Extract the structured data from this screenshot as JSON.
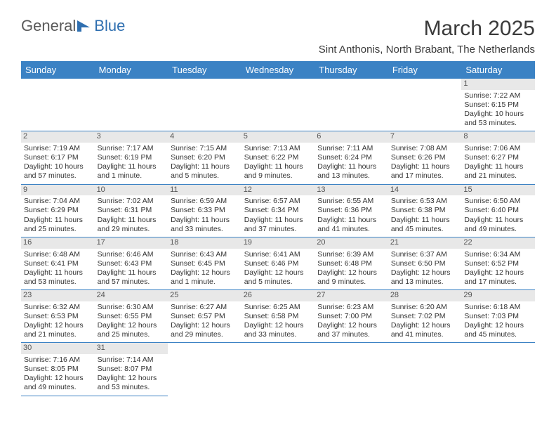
{
  "logo": {
    "text1": "General",
    "text2": "Blue",
    "color1": "#6a6a6a",
    "color2": "#2f6fb0"
  },
  "header": {
    "title": "March 2025",
    "subtitle": "Sint Anthonis, North Brabant, The Netherlands"
  },
  "colors": {
    "header_bg": "#3b82c4",
    "header_text": "#ffffff",
    "daynum_bg": "#e8e8e8",
    "border": "#3b82c4"
  },
  "weekdays": [
    "Sunday",
    "Monday",
    "Tuesday",
    "Wednesday",
    "Thursday",
    "Friday",
    "Saturday"
  ],
  "weeks": [
    [
      {
        "empty": true
      },
      {
        "empty": true
      },
      {
        "empty": true
      },
      {
        "empty": true
      },
      {
        "empty": true
      },
      {
        "empty": true
      },
      {
        "n": "1",
        "sunrise": "Sunrise: 7:22 AM",
        "sunset": "Sunset: 6:15 PM",
        "daylight": "Daylight: 10 hours and 53 minutes."
      }
    ],
    [
      {
        "n": "2",
        "sunrise": "Sunrise: 7:19 AM",
        "sunset": "Sunset: 6:17 PM",
        "daylight": "Daylight: 10 hours and 57 minutes."
      },
      {
        "n": "3",
        "sunrise": "Sunrise: 7:17 AM",
        "sunset": "Sunset: 6:19 PM",
        "daylight": "Daylight: 11 hours and 1 minute."
      },
      {
        "n": "4",
        "sunrise": "Sunrise: 7:15 AM",
        "sunset": "Sunset: 6:20 PM",
        "daylight": "Daylight: 11 hours and 5 minutes."
      },
      {
        "n": "5",
        "sunrise": "Sunrise: 7:13 AM",
        "sunset": "Sunset: 6:22 PM",
        "daylight": "Daylight: 11 hours and 9 minutes."
      },
      {
        "n": "6",
        "sunrise": "Sunrise: 7:11 AM",
        "sunset": "Sunset: 6:24 PM",
        "daylight": "Daylight: 11 hours and 13 minutes."
      },
      {
        "n": "7",
        "sunrise": "Sunrise: 7:08 AM",
        "sunset": "Sunset: 6:26 PM",
        "daylight": "Daylight: 11 hours and 17 minutes."
      },
      {
        "n": "8",
        "sunrise": "Sunrise: 7:06 AM",
        "sunset": "Sunset: 6:27 PM",
        "daylight": "Daylight: 11 hours and 21 minutes."
      }
    ],
    [
      {
        "n": "9",
        "sunrise": "Sunrise: 7:04 AM",
        "sunset": "Sunset: 6:29 PM",
        "daylight": "Daylight: 11 hours and 25 minutes."
      },
      {
        "n": "10",
        "sunrise": "Sunrise: 7:02 AM",
        "sunset": "Sunset: 6:31 PM",
        "daylight": "Daylight: 11 hours and 29 minutes."
      },
      {
        "n": "11",
        "sunrise": "Sunrise: 6:59 AM",
        "sunset": "Sunset: 6:33 PM",
        "daylight": "Daylight: 11 hours and 33 minutes."
      },
      {
        "n": "12",
        "sunrise": "Sunrise: 6:57 AM",
        "sunset": "Sunset: 6:34 PM",
        "daylight": "Daylight: 11 hours and 37 minutes."
      },
      {
        "n": "13",
        "sunrise": "Sunrise: 6:55 AM",
        "sunset": "Sunset: 6:36 PM",
        "daylight": "Daylight: 11 hours and 41 minutes."
      },
      {
        "n": "14",
        "sunrise": "Sunrise: 6:53 AM",
        "sunset": "Sunset: 6:38 PM",
        "daylight": "Daylight: 11 hours and 45 minutes."
      },
      {
        "n": "15",
        "sunrise": "Sunrise: 6:50 AM",
        "sunset": "Sunset: 6:40 PM",
        "daylight": "Daylight: 11 hours and 49 minutes."
      }
    ],
    [
      {
        "n": "16",
        "sunrise": "Sunrise: 6:48 AM",
        "sunset": "Sunset: 6:41 PM",
        "daylight": "Daylight: 11 hours and 53 minutes."
      },
      {
        "n": "17",
        "sunrise": "Sunrise: 6:46 AM",
        "sunset": "Sunset: 6:43 PM",
        "daylight": "Daylight: 11 hours and 57 minutes."
      },
      {
        "n": "18",
        "sunrise": "Sunrise: 6:43 AM",
        "sunset": "Sunset: 6:45 PM",
        "daylight": "Daylight: 12 hours and 1 minute."
      },
      {
        "n": "19",
        "sunrise": "Sunrise: 6:41 AM",
        "sunset": "Sunset: 6:46 PM",
        "daylight": "Daylight: 12 hours and 5 minutes."
      },
      {
        "n": "20",
        "sunrise": "Sunrise: 6:39 AM",
        "sunset": "Sunset: 6:48 PM",
        "daylight": "Daylight: 12 hours and 9 minutes."
      },
      {
        "n": "21",
        "sunrise": "Sunrise: 6:37 AM",
        "sunset": "Sunset: 6:50 PM",
        "daylight": "Daylight: 12 hours and 13 minutes."
      },
      {
        "n": "22",
        "sunrise": "Sunrise: 6:34 AM",
        "sunset": "Sunset: 6:52 PM",
        "daylight": "Daylight: 12 hours and 17 minutes."
      }
    ],
    [
      {
        "n": "23",
        "sunrise": "Sunrise: 6:32 AM",
        "sunset": "Sunset: 6:53 PM",
        "daylight": "Daylight: 12 hours and 21 minutes."
      },
      {
        "n": "24",
        "sunrise": "Sunrise: 6:30 AM",
        "sunset": "Sunset: 6:55 PM",
        "daylight": "Daylight: 12 hours and 25 minutes."
      },
      {
        "n": "25",
        "sunrise": "Sunrise: 6:27 AM",
        "sunset": "Sunset: 6:57 PM",
        "daylight": "Daylight: 12 hours and 29 minutes."
      },
      {
        "n": "26",
        "sunrise": "Sunrise: 6:25 AM",
        "sunset": "Sunset: 6:58 PM",
        "daylight": "Daylight: 12 hours and 33 minutes."
      },
      {
        "n": "27",
        "sunrise": "Sunrise: 6:23 AM",
        "sunset": "Sunset: 7:00 PM",
        "daylight": "Daylight: 12 hours and 37 minutes."
      },
      {
        "n": "28",
        "sunrise": "Sunrise: 6:20 AM",
        "sunset": "Sunset: 7:02 PM",
        "daylight": "Daylight: 12 hours and 41 minutes."
      },
      {
        "n": "29",
        "sunrise": "Sunrise: 6:18 AM",
        "sunset": "Sunset: 7:03 PM",
        "daylight": "Daylight: 12 hours and 45 minutes."
      }
    ],
    [
      {
        "n": "30",
        "sunrise": "Sunrise: 7:16 AM",
        "sunset": "Sunset: 8:05 PM",
        "daylight": "Daylight: 12 hours and 49 minutes."
      },
      {
        "n": "31",
        "sunrise": "Sunrise: 7:14 AM",
        "sunset": "Sunset: 8:07 PM",
        "daylight": "Daylight: 12 hours and 53 minutes."
      },
      {
        "empty": true
      },
      {
        "empty": true
      },
      {
        "empty": true
      },
      {
        "empty": true
      },
      {
        "empty": true
      }
    ]
  ]
}
